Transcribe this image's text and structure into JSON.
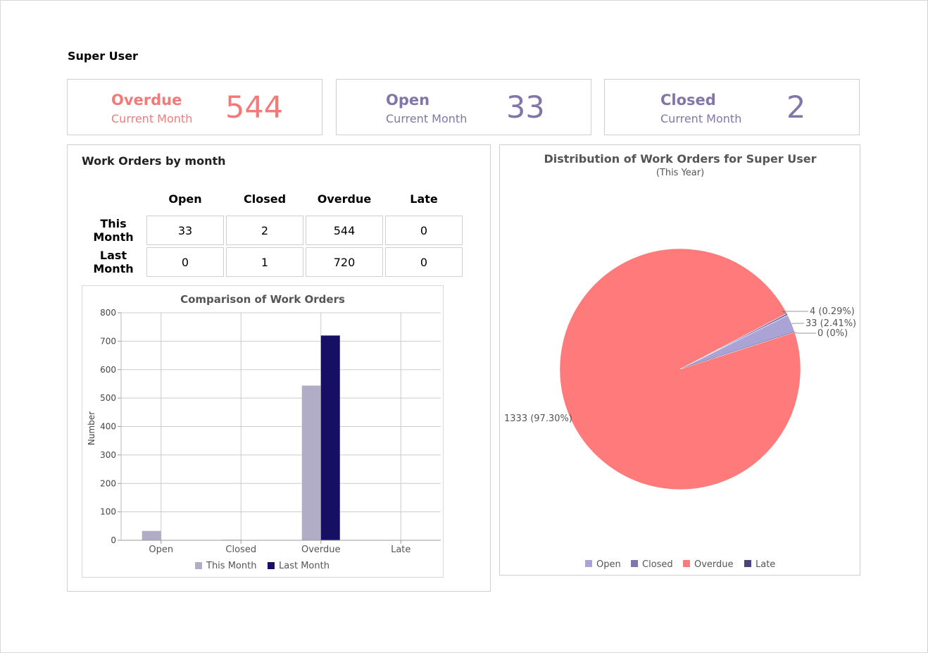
{
  "user_title": "Super User",
  "kpis": [
    {
      "label": "Overdue",
      "sublabel": "Current Month",
      "value": "544",
      "color": "#f47a7a"
    },
    {
      "label": "Open",
      "sublabel": "Current Month",
      "value": "33",
      "color": "#8276a8"
    },
    {
      "label": "Closed",
      "sublabel": "Current Month",
      "value": "2",
      "color": "#8276a8"
    }
  ],
  "work_orders_panel": {
    "title": "Work Orders by month",
    "columns": [
      "Open",
      "Closed",
      "Overdue",
      "Late"
    ],
    "rows": [
      {
        "label_line1": "This",
        "label_line2": "Month",
        "values": [
          "33",
          "2",
          "544",
          "0"
        ]
      },
      {
        "label_line1": "Last",
        "label_line2": "Month",
        "values": [
          "0",
          "1",
          "720",
          "0"
        ]
      }
    ]
  },
  "chart_data": [
    {
      "type": "bar",
      "title": "Comparison of Work Orders",
      "xlabel": "",
      "ylabel": "Number",
      "categories": [
        "Open",
        "Closed",
        "Overdue",
        "Late"
      ],
      "series": [
        {
          "name": "This Month",
          "values": [
            33,
            2,
            544,
            0
          ],
          "color": "#b2adc7"
        },
        {
          "name": "Last Month",
          "values": [
            0,
            1,
            720,
            0
          ],
          "color": "#170f63"
        }
      ],
      "ylim": [
        0,
        800
      ],
      "yticks": [
        0,
        100,
        200,
        300,
        400,
        500,
        600,
        700,
        800
      ],
      "grid": true,
      "legend": "bottom"
    },
    {
      "type": "pie",
      "title": "Distribution of Work Orders for Super User",
      "subtitle": "(This Year)",
      "slices": [
        {
          "name": "Open",
          "value": 33,
          "label": "33 (2.41%)",
          "color": "#a9a3d6"
        },
        {
          "name": "Closed",
          "value": 4,
          "label": "4 (0.29%)",
          "color": "#7e76ac"
        },
        {
          "name": "Overdue",
          "value": 1333,
          "label": "1333 (97.30%)",
          "color": "#ff7b7b"
        },
        {
          "name": "Late",
          "value": 0,
          "label": "0 (0%)",
          "color": "#4c4478"
        }
      ],
      "legend": "bottom"
    }
  ]
}
